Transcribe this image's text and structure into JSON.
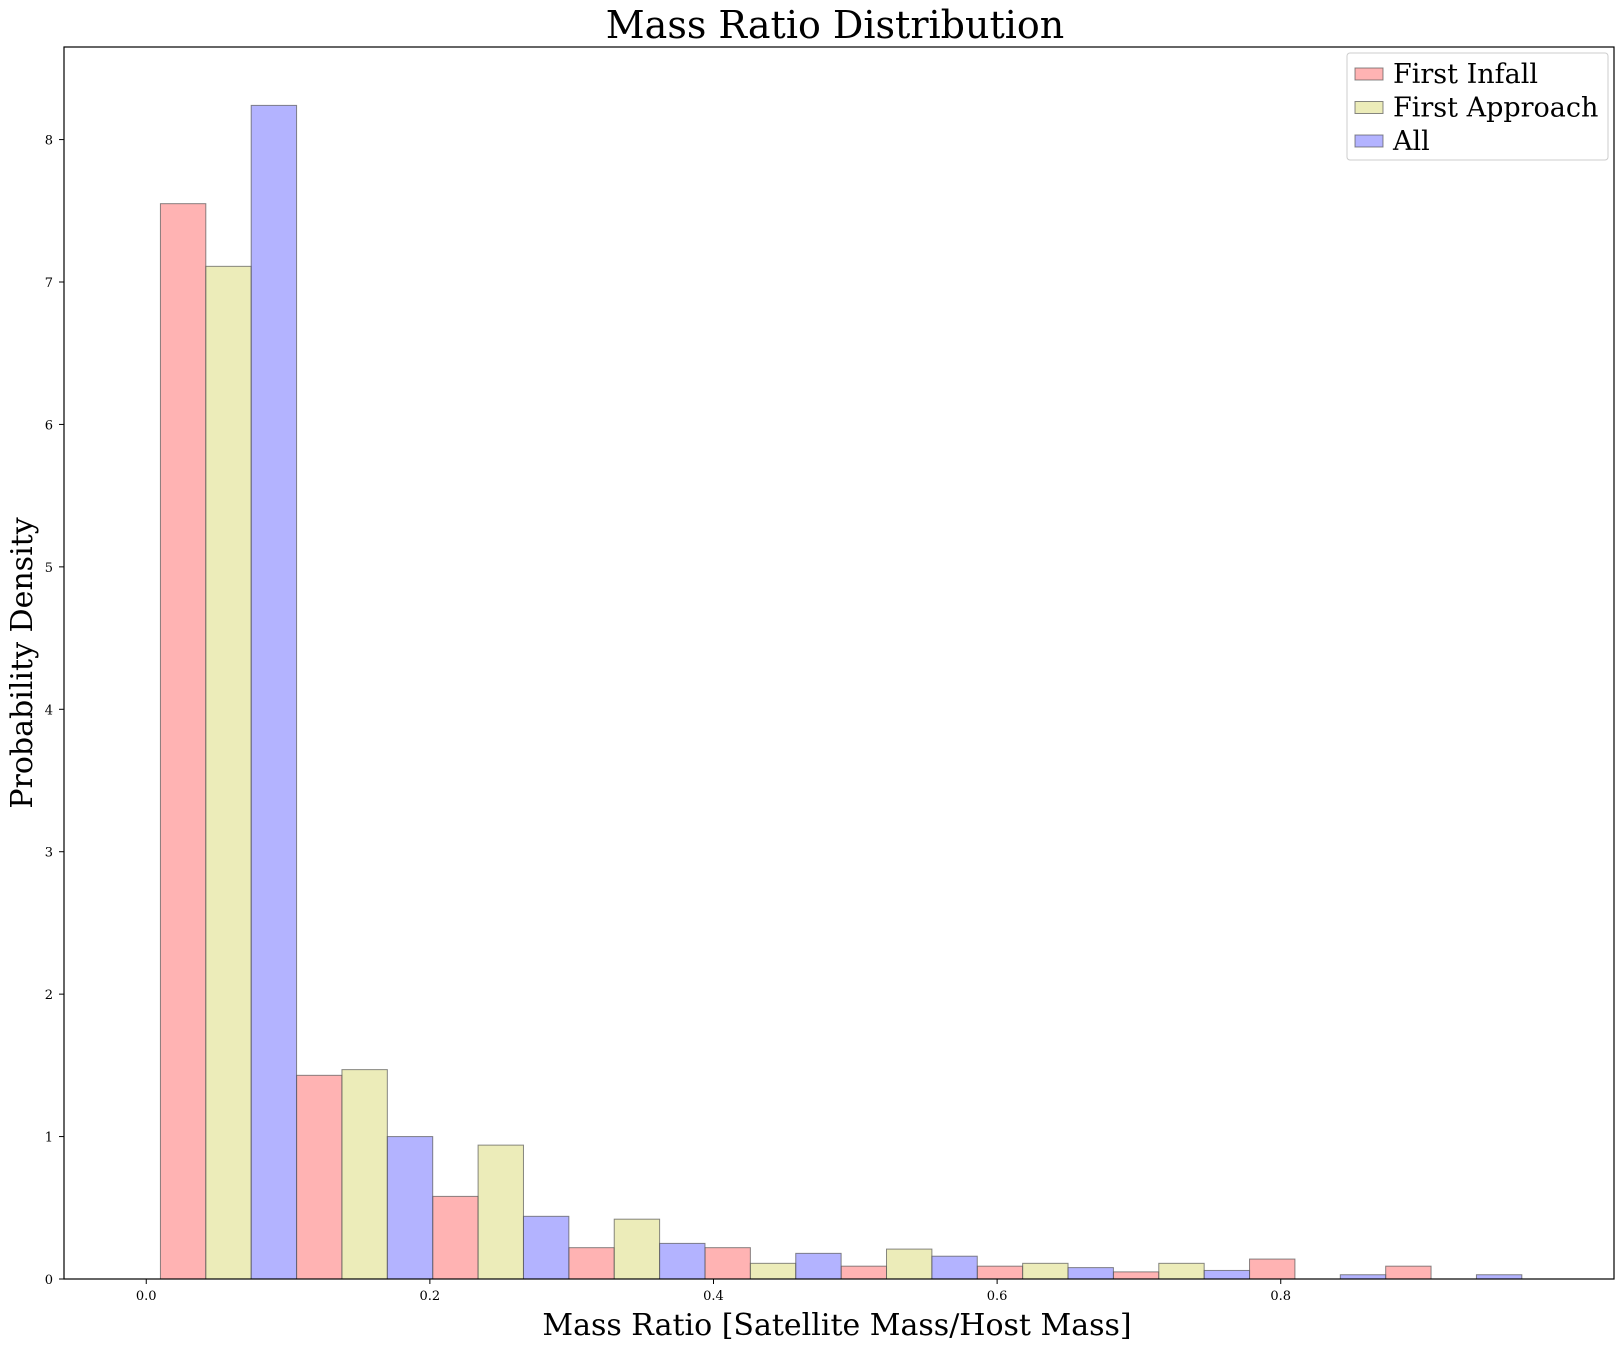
{
  "chart_data": {
    "type": "bar",
    "title": "Mass Ratio Distribution",
    "xlabel": "Mass Ratio [Satellite Mass/Host Mass]",
    "ylabel": "Probability Density",
    "xlim": [
      -0.058,
      1.035
    ],
    "ylim": [
      0,
      8.65
    ],
    "xticks": [
      0.0,
      0.2,
      0.4,
      0.6,
      0.8
    ],
    "xtick_labels": [
      "0.0",
      "0.2",
      "0.4",
      "0.6",
      "0.8"
    ],
    "yticks": [
      0,
      1,
      2,
      3,
      4,
      5,
      6,
      7,
      8
    ],
    "ytick_labels": [
      "0",
      "1",
      "2",
      "3",
      "4",
      "5",
      "6",
      "7",
      "8"
    ],
    "bin_edges": [
      0.01,
      0.106,
      0.202,
      0.298,
      0.394,
      0.49,
      0.586,
      0.682,
      0.778,
      0.874,
      0.97
    ],
    "grid": false,
    "legend_position": "top-right",
    "series": [
      {
        "name": "First Infall",
        "color": "#ff8080",
        "values": [
          7.55,
          1.43,
          0.58,
          0.22,
          0.22,
          0.09,
          0.09,
          0.05,
          0.14,
          0.09
        ]
      },
      {
        "name": "First Approach",
        "color": "#e0e08a",
        "values": [
          7.11,
          1.47,
          0.94,
          0.42,
          0.11,
          0.21,
          0.11,
          0.11,
          0,
          0
        ]
      },
      {
        "name": "All",
        "color": "#8080ff",
        "values": [
          8.24,
          1.0,
          0.44,
          0.25,
          0.18,
          0.16,
          0.08,
          0.06,
          0.03,
          0.03
        ]
      }
    ]
  }
}
